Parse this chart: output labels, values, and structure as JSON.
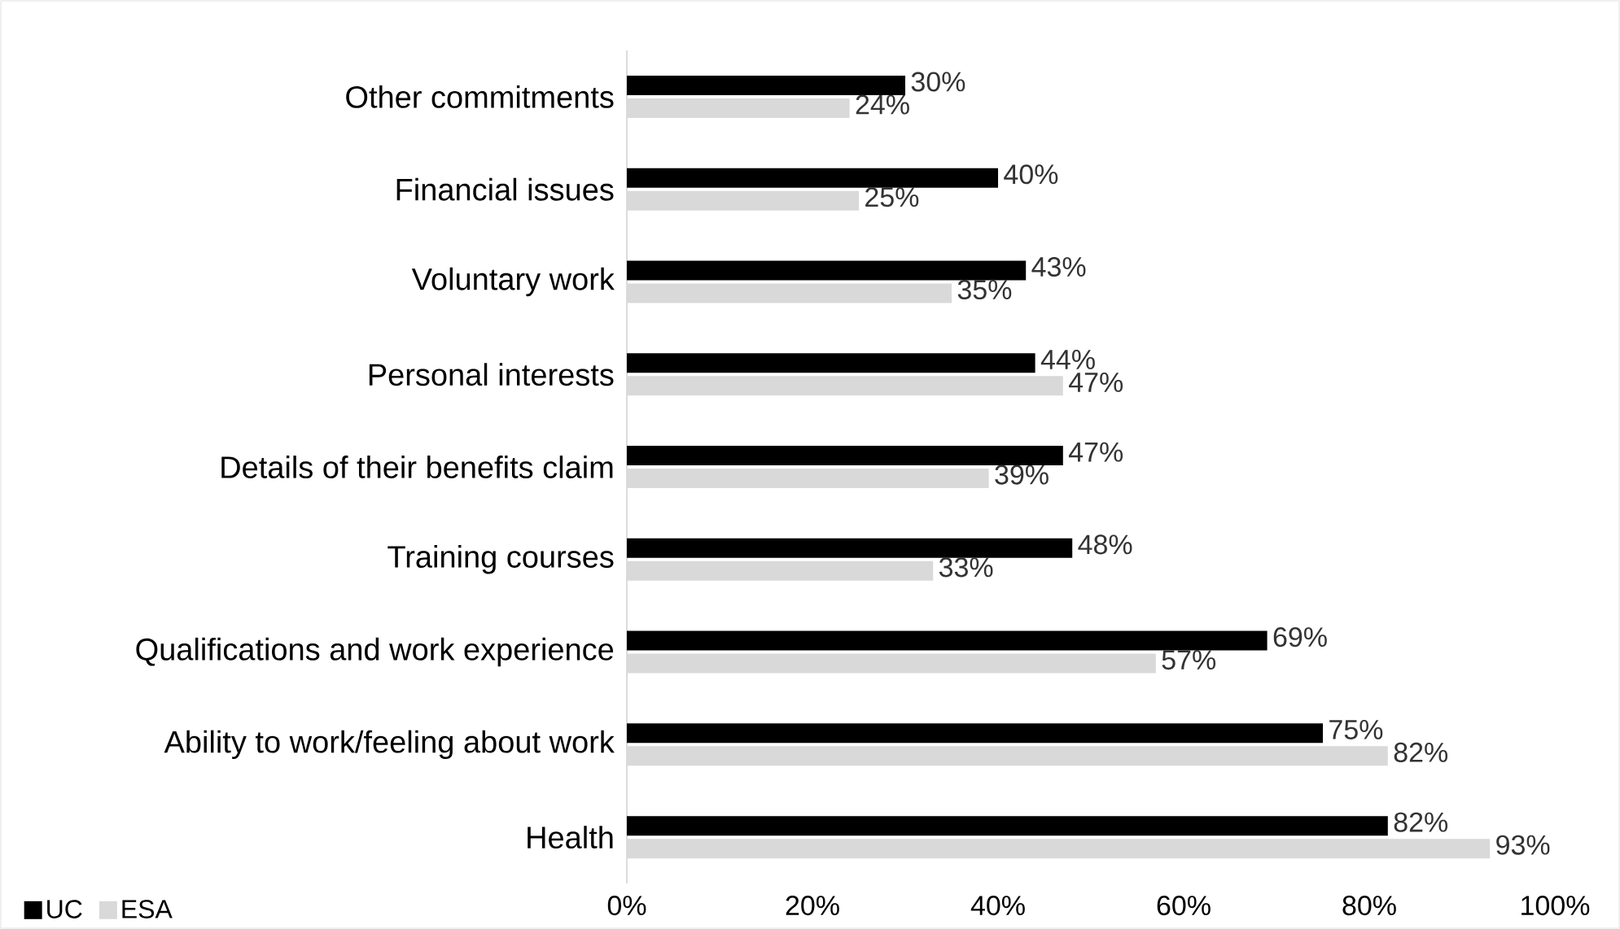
{
  "chart_data": {
    "type": "bar",
    "orientation": "horizontal",
    "categories": [
      "Other commitments",
      "Financial issues",
      "Voluntary work",
      "Personal interests",
      "Details of their benefits claim",
      "Training courses",
      "Qualifications and work experience",
      "Ability to work/feeling about work",
      "Health"
    ],
    "series": [
      {
        "name": "UC",
        "color": "#000000",
        "values": [
          30,
          40,
          43,
          44,
          47,
          48,
          69,
          75,
          82
        ],
        "value_labels": [
          "30%",
          "40%",
          "43%",
          "44%",
          "47%",
          "48%",
          "69%",
          "75%",
          "82%"
        ]
      },
      {
        "name": "ESA",
        "color": "#d9d9d9",
        "values": [
          24,
          25,
          35,
          47,
          39,
          33,
          57,
          82,
          93
        ],
        "value_labels": [
          "24%",
          "25%",
          "35%",
          "47%",
          "39%",
          "33%",
          "57%",
          "82%",
          "93%"
        ]
      }
    ],
    "xlim": [
      0,
      100
    ],
    "xticks": [
      {
        "value": 0,
        "label": "0%"
      },
      {
        "value": 20,
        "label": "20%"
      },
      {
        "value": 40,
        "label": "40%"
      },
      {
        "value": 60,
        "label": "60%"
      },
      {
        "value": 80,
        "label": "80%"
      },
      {
        "value": 100,
        "label": "100%"
      }
    ],
    "grid": false,
    "legend": "bottom left"
  }
}
